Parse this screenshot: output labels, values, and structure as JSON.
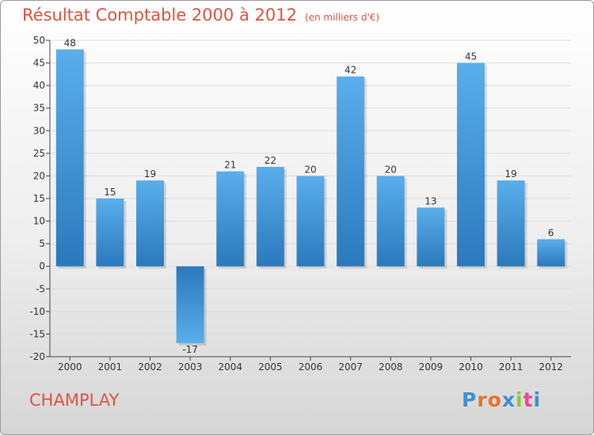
{
  "header": {
    "title": "Résultat Comptable 2000 à 2012",
    "subtitle": "(en milliers d'€)"
  },
  "commune": "CHAMPLAY",
  "logo": {
    "text": "Proxiti",
    "letter_colors": [
      "#3d8fd6",
      "#e8732a",
      "#e8732a",
      "#3d8fd6",
      "#8cc63f",
      "#e84a8a",
      "#3d8fd6"
    ]
  },
  "colors": {
    "title": "#e0533f",
    "bar_light": "#5aaeeb",
    "bar_dark": "#2a79bd"
  },
  "chart_data": {
    "type": "bar",
    "title": "Résultat Comptable 2000 à 2012",
    "subtitle": "(en milliers d'€)",
    "categories": [
      "2000",
      "2001",
      "2002",
      "2003",
      "2004",
      "2005",
      "2006",
      "2007",
      "2008",
      "2009",
      "2010",
      "2011",
      "2012"
    ],
    "values": [
      48,
      15,
      19,
      -17,
      21,
      22,
      20,
      42,
      20,
      13,
      45,
      19,
      6
    ],
    "data_labels": [
      "48",
      "15",
      "19",
      "-17",
      "21",
      "22",
      "20",
      "42",
      "20",
      "13",
      "45",
      "19",
      "6"
    ],
    "ylim": [
      -20,
      50
    ],
    "yticks": [
      50,
      45,
      40,
      35,
      30,
      25,
      20,
      15,
      10,
      5,
      0,
      -5,
      -10,
      -15,
      -20
    ],
    "ytick_labels": [
      "50",
      "45",
      "40",
      "35",
      "30",
      "25",
      "20",
      "15",
      "10",
      "5",
      "0",
      "-5",
      "-10",
      "-15",
      "-20"
    ],
    "grid": true,
    "legend": "none"
  }
}
